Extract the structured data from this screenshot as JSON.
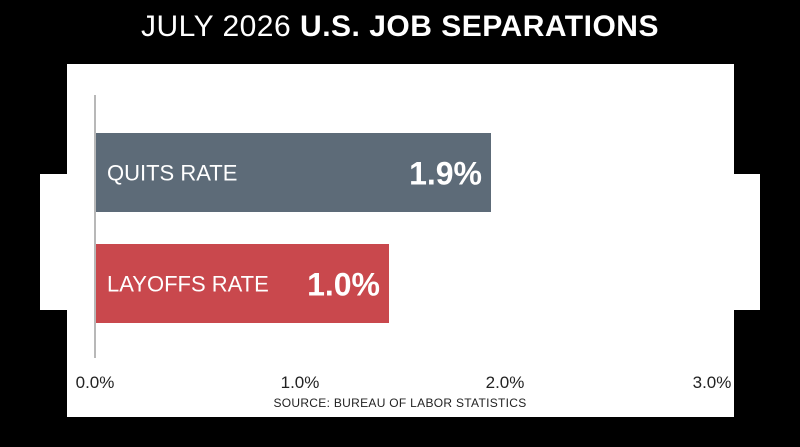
{
  "title": {
    "light": "JULY 2026",
    "bold": "U.S. JOB SEPARATIONS"
  },
  "source": "SOURCE: BUREAU OF LABOR STATISTICS",
  "colors": {
    "quits": "#5d6b78",
    "layoffs": "#c9484d",
    "axis": "#b8b8b8",
    "background": "#000000",
    "panel": "#ffffff"
  },
  "chart_data": {
    "type": "bar",
    "orientation": "horizontal",
    "categories": [
      "QUITS RATE",
      "LAYOFFS RATE"
    ],
    "values": [
      1.9,
      1.0
    ],
    "value_labels": [
      "1.9%",
      "1.0%"
    ],
    "xlim": [
      0,
      3.0
    ],
    "ticks": [
      0,
      1.0,
      2.0,
      3.0
    ],
    "tick_labels": [
      "0.0%",
      "1.0%",
      "2.0%",
      "3.0%"
    ],
    "grid": false,
    "legend": "none"
  }
}
